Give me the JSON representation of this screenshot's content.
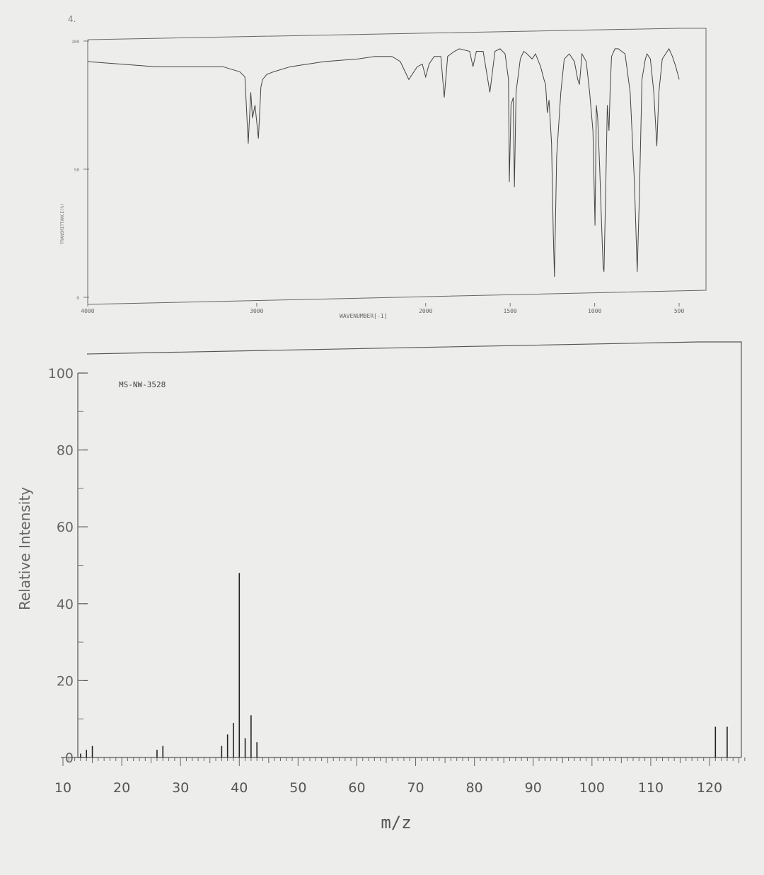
{
  "page_number": "4.",
  "chart_data": [
    {
      "type": "line",
      "id": "ir-spectrum",
      "title": "",
      "xlabel": "WAVENUMBER[-1]",
      "ylabel": "TRANSMITTANCE(%)",
      "xlim": [
        4000,
        450
      ],
      "ylim": [
        0,
        100
      ],
      "x_ticks": [
        4000,
        3000,
        2000,
        1500,
        1000,
        500
      ],
      "x_tick_labels": [
        "4000",
        "3000",
        "2000",
        "1500",
        "1000",
        "500"
      ],
      "y_ticks": [
        0,
        50,
        100
      ],
      "y_tick_labels": [
        "0",
        "50",
        "100"
      ],
      "grid": false,
      "series": [
        {
          "points": [
            [
              4000,
              92
            ],
            [
              3800,
              91
            ],
            [
              3600,
              90
            ],
            [
              3400,
              90
            ],
            [
              3200,
              90
            ],
            [
              3100,
              88
            ],
            [
              3070,
              86
            ],
            [
              3050,
              60
            ],
            [
              3035,
              80
            ],
            [
              3025,
              70
            ],
            [
              3010,
              75
            ],
            [
              2990,
              62
            ],
            [
              2975,
              82
            ],
            [
              2965,
              85
            ],
            [
              2940,
              87
            ],
            [
              2900,
              88
            ],
            [
              2800,
              90
            ],
            [
              2600,
              92
            ],
            [
              2400,
              93
            ],
            [
              2300,
              94
            ],
            [
              2200,
              94
            ],
            [
              2150,
              92
            ],
            [
              2100,
              85
            ],
            [
              2050,
              90
            ],
            [
              2020,
              91
            ],
            [
              2000,
              86
            ],
            [
              1980,
              91
            ],
            [
              1950,
              94
            ],
            [
              1910,
              94
            ],
            [
              1890,
              78
            ],
            [
              1870,
              94
            ],
            [
              1830,
              96
            ],
            [
              1800,
              97
            ],
            [
              1740,
              96
            ],
            [
              1720,
              90
            ],
            [
              1700,
              96
            ],
            [
              1660,
              96
            ],
            [
              1620,
              80
            ],
            [
              1590,
              96
            ],
            [
              1560,
              97
            ],
            [
              1530,
              95
            ],
            [
              1510,
              85
            ],
            [
              1505,
              45
            ],
            [
              1495,
              75
            ],
            [
              1482,
              78
            ],
            [
              1475,
              43
            ],
            [
              1465,
              80
            ],
            [
              1440,
              93
            ],
            [
              1420,
              96
            ],
            [
              1400,
              95
            ],
            [
              1370,
              93
            ],
            [
              1350,
              95
            ],
            [
              1320,
              90
            ],
            [
              1300,
              85
            ],
            [
              1290,
              83
            ],
            [
              1280,
              72
            ],
            [
              1270,
              77
            ],
            [
              1255,
              60
            ],
            [
              1245,
              25
            ],
            [
              1238,
              8
            ],
            [
              1225,
              55
            ],
            [
              1200,
              80
            ],
            [
              1180,
              93
            ],
            [
              1150,
              95
            ],
            [
              1120,
              92
            ],
            [
              1100,
              85
            ],
            [
              1090,
              83
            ],
            [
              1075,
              95
            ],
            [
              1050,
              92
            ],
            [
              1030,
              80
            ],
            [
              1010,
              65
            ],
            [
              998,
              28
            ],
            [
              990,
              75
            ],
            [
              982,
              70
            ],
            [
              970,
              50
            ],
            [
              960,
              30
            ],
            [
              950,
              12
            ],
            [
              945,
              10
            ],
            [
              935,
              40
            ],
            [
              925,
              75
            ],
            [
              915,
              65
            ],
            [
              908,
              82
            ],
            [
              900,
              94
            ],
            [
              880,
              97
            ],
            [
              860,
              97
            ],
            [
              840,
              96
            ],
            [
              820,
              95
            ],
            [
              790,
              80
            ],
            [
              765,
              45
            ],
            [
              748,
              10
            ],
            [
              735,
              40
            ],
            [
              720,
              85
            ],
            [
              700,
              93
            ],
            [
              690,
              95
            ],
            [
              670,
              93
            ],
            [
              650,
              80
            ],
            [
              632,
              59
            ],
            [
              620,
              80
            ],
            [
              600,
              93
            ],
            [
              580,
              95
            ],
            [
              560,
              97
            ],
            [
              540,
              94
            ],
            [
              520,
              90
            ],
            [
              500,
              85
            ]
          ]
        }
      ]
    },
    {
      "type": "bar",
      "id": "mass-spectrum",
      "title": "MS-NW-3528",
      "xlabel": "m/z",
      "ylabel": "Relative Intensity",
      "xlim": [
        10,
        126
      ],
      "ylim": [
        0,
        100
      ],
      "x_ticks": [
        10,
        20,
        30,
        40,
        50,
        60,
        70,
        80,
        90,
        100,
        110,
        120
      ],
      "x_tick_labels": [
        "10",
        "20",
        "30",
        "40",
        "50",
        "60",
        "70",
        "80",
        "90",
        "100",
        "110",
        "120"
      ],
      "y_ticks": [
        0,
        20,
        40,
        60,
        80,
        100
      ],
      "y_tick_labels": [
        "0",
        "20",
        "40",
        "60",
        "80",
        "100"
      ],
      "grid": false,
      "x": [
        13,
        14,
        15,
        26,
        27,
        37,
        38,
        39,
        40,
        41,
        42,
        43,
        121,
        123
      ],
      "values": [
        1,
        2,
        3,
        2,
        3,
        3,
        6,
        9,
        48,
        5,
        11,
        4,
        8,
        8
      ]
    }
  ]
}
